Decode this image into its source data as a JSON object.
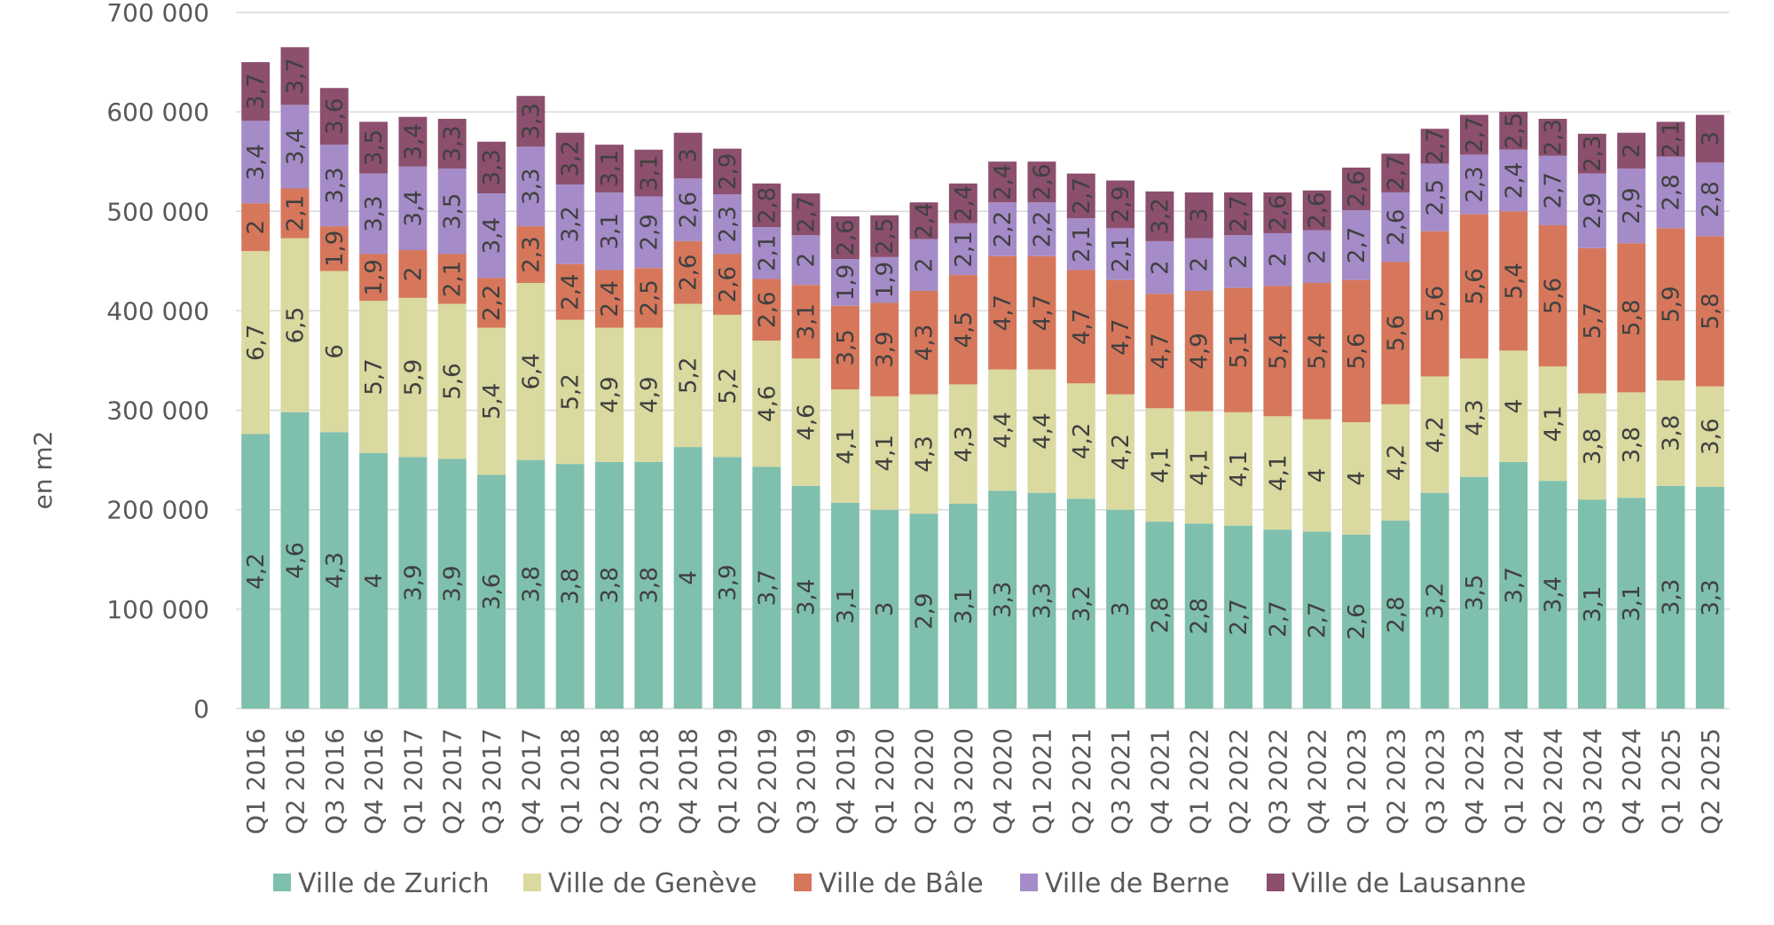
{
  "chart_data": {
    "type": "bar",
    "stacked": true,
    "title": "",
    "xlabel": "",
    "ylabel": "en m2",
    "ylim": [
      0,
      700000
    ],
    "yticks": [
      0,
      100000,
      200000,
      300000,
      400000,
      500000,
      600000,
      700000
    ],
    "ytick_labels": [
      "0",
      "100 000",
      "200 000",
      "300 000",
      "400 000",
      "500 000",
      "600 000",
      "700 000"
    ],
    "grid": true,
    "legend_position": "bottom",
    "categories": [
      "Q1 2016",
      "Q2 2016",
      "Q3 2016",
      "Q4 2016",
      "Q1 2017",
      "Q2 2017",
      "Q3 2017",
      "Q4 2017",
      "Q1 2018",
      "Q2 2018",
      "Q3 2018",
      "Q4 2018",
      "Q1 2019",
      "Q2 2019",
      "Q3 2019",
      "Q4 2019",
      "Q1 2020",
      "Q2 2020",
      "Q3 2020",
      "Q4 2020",
      "Q1 2021",
      "Q2 2021",
      "Q3 2021",
      "Q4 2021",
      "Q1 2022",
      "Q2 2022",
      "Q3 2022",
      "Q4 2022",
      "Q1 2023",
      "Q2 2023",
      "Q3 2023",
      "Q4 2023",
      "Q1 2024",
      "Q2 2024",
      "Q3 2024",
      "Q4 2024",
      "Q1 2025",
      "Q2 2025"
    ],
    "series": [
      {
        "name": "Ville de Zurich",
        "color": "#7fbfad",
        "values": [
          276000,
          298000,
          278000,
          257000,
          253000,
          251000,
          235000,
          250000,
          246000,
          248000,
          248000,
          263000,
          253000,
          243000,
          224000,
          207000,
          200000,
          196000,
          206000,
          219000,
          217000,
          211000,
          200000,
          188000,
          186000,
          184000,
          180000,
          178000,
          175000,
          189000,
          217000,
          233000,
          248000,
          229000,
          210000,
          212000,
          224000,
          223000
        ],
        "labels": [
          "4,2",
          "4,6",
          "4,3",
          "4",
          "3,9",
          "3,9",
          "3,6",
          "3,8",
          "3,8",
          "3,8",
          "3,8",
          "4",
          "3,9",
          "3,7",
          "3,4",
          "3,1",
          "3",
          "2,9",
          "3,1",
          "3,3",
          "3,3",
          "3,2",
          "3",
          "2,8",
          "2,8",
          "2,7",
          "2,7",
          "2,7",
          "2,6",
          "2,8",
          "3,2",
          "3,5",
          "3,7",
          "3,4",
          "3,1",
          "3,1",
          "3,3",
          "3,3"
        ]
      },
      {
        "name": "Ville de Genève",
        "color": "#d9d9a0",
        "values": [
          184000,
          175000,
          162000,
          153000,
          160000,
          156000,
          148000,
          178000,
          145000,
          135000,
          135000,
          144000,
          143000,
          127000,
          128000,
          114000,
          114000,
          120000,
          120000,
          122000,
          124000,
          116000,
          116000,
          114000,
          113000,
          114000,
          114000,
          113000,
          113000,
          117000,
          117000,
          119000,
          112000,
          115000,
          107000,
          106000,
          106000,
          101000
        ],
        "labels": [
          "6,7",
          "6,5",
          "6",
          "5,7",
          "5,9",
          "5,6",
          "5,4",
          "6,4",
          "5,2",
          "4,9",
          "4,9",
          "5,2",
          "5,2",
          "4,6",
          "4,6",
          "4,1",
          "4,1",
          "4,3",
          "4,3",
          "4,4",
          "4,4",
          "4,2",
          "4,2",
          "4,1",
          "4,1",
          "4,1",
          "4,1",
          "4",
          "4",
          "4,2",
          "4,2",
          "4,3",
          "4",
          "4,1",
          "3,8",
          "3,8",
          "3,8",
          "3,6"
        ]
      },
      {
        "name": "Ville de Bâle",
        "color": "#d6775b",
        "values": [
          48000,
          50000,
          45000,
          47000,
          48000,
          50000,
          50000,
          57000,
          56000,
          58000,
          60000,
          63000,
          61000,
          62000,
          74000,
          84000,
          94000,
          104000,
          110000,
          114000,
          114000,
          114000,
          115000,
          115000,
          121000,
          125000,
          131000,
          137000,
          143000,
          143000,
          146000,
          145000,
          140000,
          142000,
          146000,
          150000,
          153000,
          151000
        ],
        "labels": [
          "2",
          "2,1",
          "1,9",
          "1,9",
          "2",
          "2,1",
          "2,2",
          "2,3",
          "2,4",
          "2,4",
          "2,5",
          "2,6",
          "2,6",
          "2,6",
          "3,1",
          "3,5",
          "3,9",
          "4,3",
          "4,5",
          "4,7",
          "4,7",
          "4,7",
          "4,7",
          "4,7",
          "4,9",
          "5,1",
          "5,4",
          "5,4",
          "5,6",
          "5,6",
          "5,6",
          "5,6",
          "5,4",
          "5,6",
          "5,7",
          "5,8",
          "5,9",
          "5,8"
        ]
      },
      {
        "name": "Ville de Berne",
        "color": "#a58cc8",
        "values": [
          83000,
          84000,
          82000,
          81000,
          84000,
          86000,
          85000,
          80000,
          80000,
          78000,
          72000,
          63000,
          60000,
          52000,
          50000,
          47000,
          46000,
          52000,
          52000,
          54000,
          54000,
          52000,
          52000,
          53000,
          53000,
          53000,
          53000,
          53000,
          70000,
          70000,
          68000,
          60000,
          62000,
          70000,
          75000,
          75000,
          72000,
          74000
        ],
        "labels": [
          "3,4",
          "3,4",
          "3,3",
          "3,3",
          "3,4",
          "3,5",
          "3,4",
          "3,3",
          "3,2",
          "3,1",
          "2,9",
          "2,6",
          "2,3",
          "2,1",
          "2",
          "1,9",
          "1,9",
          "2",
          "2,1",
          "2,2",
          "2,2",
          "2,1",
          "2,1",
          "2",
          "2",
          "2",
          "2",
          "2",
          "2,7",
          "2,6",
          "2,5",
          "2,3",
          "2,4",
          "2,7",
          "2,9",
          "2,9",
          "2,8",
          "2,8"
        ]
      },
      {
        "name": "Ville de Lausanne",
        "color": "#8c4f6e",
        "values": [
          59000,
          58000,
          57000,
          52000,
          50000,
          50000,
          52000,
          51000,
          52000,
          48000,
          47000,
          46000,
          46000,
          44000,
          42000,
          43000,
          42000,
          37000,
          40000,
          41000,
          41000,
          45000,
          48000,
          50000,
          46000,
          43000,
          41000,
          40000,
          43000,
          39000,
          35000,
          40000,
          38000,
          37000,
          40000,
          36000,
          35000,
          48000
        ],
        "labels": [
          "3,7",
          "3,7",
          "3,6",
          "3,5",
          "3,4",
          "3,3",
          "3,3",
          "3,3",
          "3,2",
          "3,1",
          "3,1",
          "3",
          "2,9",
          "2,8",
          "2,7",
          "2,6",
          "2,5",
          "2,4",
          "2,4",
          "2,4",
          "2,6",
          "2,7",
          "2,9",
          "3,2",
          "3",
          "2,7",
          "2,6",
          "2,6",
          "2,6",
          "2,7",
          "2,7",
          "2,7",
          "2,5",
          "2,3",
          "2,3",
          "2",
          "2,1",
          "3"
        ]
      }
    ]
  }
}
